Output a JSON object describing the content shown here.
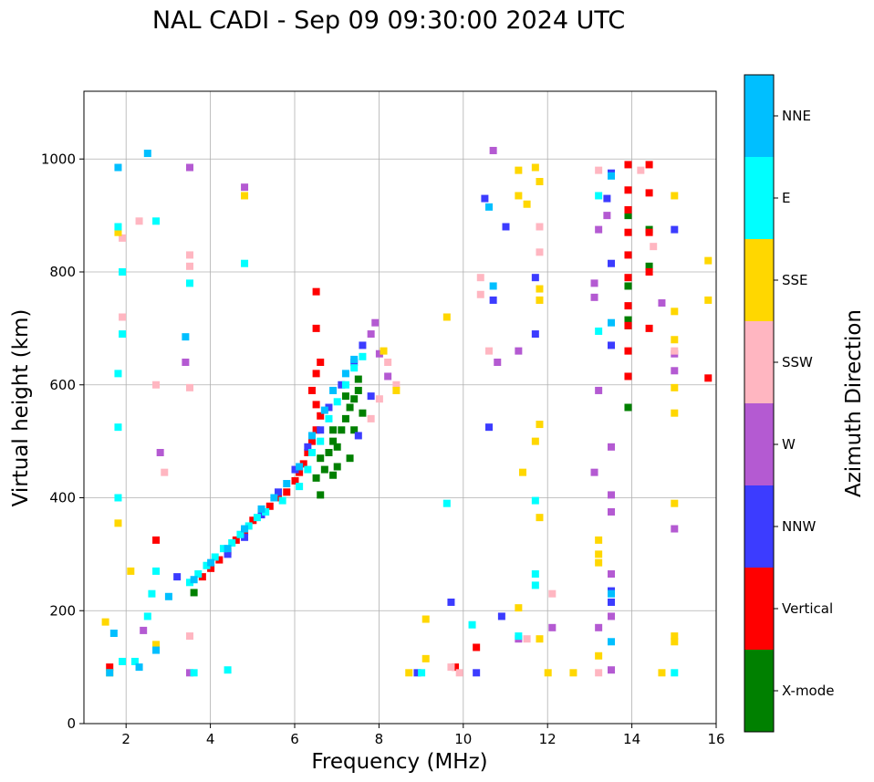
{
  "chart_data": {
    "type": "scatter",
    "title": "NAL CADI - Sep 09 09:30:00 2024 UTC",
    "xlabel": "Frequency (MHz)",
    "ylabel": "Virtual height (km)",
    "xlim": [
      1,
      16
    ],
    "ylim": [
      0,
      1120
    ],
    "xticks": [
      2,
      4,
      6,
      8,
      10,
      12,
      14,
      16
    ],
    "xtick_labels": [
      "2",
      "4",
      "6",
      "8",
      "10",
      "12",
      "14",
      "16"
    ],
    "yticks": [
      0,
      200,
      400,
      600,
      800,
      1000
    ],
    "ytick_labels": [
      "0",
      "200",
      "400",
      "600",
      "800",
      "1000"
    ],
    "grid": true,
    "colorbar": {
      "label": "Azimuth Direction",
      "categories": [
        {
          "name": "X-mode",
          "color": "#008000"
        },
        {
          "name": "Vertical",
          "color": "#ff0000"
        },
        {
          "name": "NNW",
          "color": "#3c3cff"
        },
        {
          "name": "W",
          "color": "#b45ad2"
        },
        {
          "name": "SSW",
          "color": "#ffb6c1"
        },
        {
          "name": "SSE",
          "color": "#ffd700"
        },
        {
          "name": "E",
          "color": "#00ffff"
        },
        {
          "name": "NNE",
          "color": "#00bfff"
        }
      ]
    },
    "series": [
      {
        "name": "X-mode",
        "points": [
          [
            6.5,
            435
          ],
          [
            6.6,
            470
          ],
          [
            6.8,
            480
          ],
          [
            6.9,
            500
          ],
          [
            7.0,
            490
          ],
          [
            7.1,
            520
          ],
          [
            7.2,
            540
          ],
          [
            7.3,
            560
          ],
          [
            7.4,
            575
          ],
          [
            7.5,
            590
          ],
          [
            7.6,
            550
          ],
          [
            7.0,
            455
          ],
          [
            6.7,
            450
          ],
          [
            6.9,
            520
          ],
          [
            7.2,
            580
          ],
          [
            7.4,
            520
          ],
          [
            7.5,
            610
          ],
          [
            6.6,
            405
          ],
          [
            6.9,
            440
          ],
          [
            7.3,
            470
          ],
          [
            3.6,
            232
          ],
          [
            13.9,
            560
          ],
          [
            13.9,
            900
          ],
          [
            14.4,
            875
          ],
          [
            14.4,
            810
          ],
          [
            13.9,
            705
          ],
          [
            13.9,
            775
          ],
          [
            13.9,
            715
          ]
        ]
      },
      {
        "name": "Vertical",
        "points": [
          [
            3.8,
            260
          ],
          [
            4.0,
            275
          ],
          [
            4.2,
            290
          ],
          [
            4.4,
            305
          ],
          [
            4.6,
            325
          ],
          [
            4.8,
            340
          ],
          [
            5.0,
            360
          ],
          [
            5.2,
            375
          ],
          [
            5.4,
            385
          ],
          [
            5.6,
            400
          ],
          [
            5.8,
            410
          ],
          [
            6.0,
            430
          ],
          [
            6.1,
            445
          ],
          [
            6.2,
            460
          ],
          [
            6.3,
            480
          ],
          [
            6.4,
            500
          ],
          [
            6.5,
            520
          ],
          [
            6.6,
            545
          ],
          [
            6.5,
            565
          ],
          [
            6.4,
            590
          ],
          [
            6.5,
            620
          ],
          [
            6.6,
            640
          ],
          [
            6.5,
            700
          ],
          [
            6.5,
            765
          ],
          [
            13.9,
            615
          ],
          [
            13.9,
            660
          ],
          [
            13.9,
            705
          ],
          [
            13.9,
            740
          ],
          [
            13.9,
            790
          ],
          [
            13.9,
            830
          ],
          [
            13.9,
            870
          ],
          [
            13.9,
            910
          ],
          [
            13.9,
            945
          ],
          [
            13.9,
            990
          ],
          [
            14.4,
            700
          ],
          [
            14.4,
            800
          ],
          [
            14.4,
            870
          ],
          [
            14.4,
            940
          ],
          [
            14.4,
            990
          ],
          [
            15.8,
            612
          ],
          [
            10.3,
            135
          ],
          [
            9.8,
            100
          ],
          [
            2.7,
            325
          ],
          [
            1.6,
            100
          ]
        ]
      },
      {
        "name": "NNW",
        "points": [
          [
            4.4,
            300
          ],
          [
            4.8,
            330
          ],
          [
            5.2,
            370
          ],
          [
            5.6,
            410
          ],
          [
            6.0,
            450
          ],
          [
            6.3,
            490
          ],
          [
            6.6,
            520
          ],
          [
            6.8,
            560
          ],
          [
            7.1,
            600
          ],
          [
            7.4,
            640
          ],
          [
            7.6,
            670
          ],
          [
            7.8,
            580
          ],
          [
            7.5,
            510
          ],
          [
            10.6,
            525
          ],
          [
            10.7,
            750
          ],
          [
            13.4,
            930
          ],
          [
            13.5,
            975
          ],
          [
            13.5,
            815
          ],
          [
            13.5,
            670
          ],
          [
            13.5,
            215
          ],
          [
            13.5,
            235
          ],
          [
            15.0,
            875
          ],
          [
            11.7,
            690
          ],
          [
            11.7,
            790
          ],
          [
            11.0,
            880
          ],
          [
            10.5,
            930
          ],
          [
            8.9,
            90
          ],
          [
            10.9,
            190
          ],
          [
            10.3,
            90
          ],
          [
            9.7,
            215
          ],
          [
            3.2,
            260
          ]
        ]
      },
      {
        "name": "W",
        "points": [
          [
            7.8,
            690
          ],
          [
            7.9,
            710
          ],
          [
            8.2,
            615
          ],
          [
            8.0,
            655
          ],
          [
            13.2,
            590
          ],
          [
            13.2,
            170
          ],
          [
            13.5,
            95
          ],
          [
            13.5,
            265
          ],
          [
            13.5,
            375
          ],
          [
            13.5,
            405
          ],
          [
            13.5,
            490
          ],
          [
            13.5,
            190
          ],
          [
            15.0,
            625
          ],
          [
            15.0,
            655
          ],
          [
            15.0,
            345
          ],
          [
            14.7,
            745
          ],
          [
            13.1,
            755
          ],
          [
            13.1,
            780
          ],
          [
            13.2,
            875
          ],
          [
            13.4,
            900
          ],
          [
            12.1,
            170
          ],
          [
            10.7,
            1015
          ],
          [
            10.8,
            640
          ],
          [
            11.3,
            660
          ],
          [
            2.4,
            165
          ],
          [
            3.5,
            985
          ],
          [
            4.8,
            950
          ],
          [
            2.8,
            480
          ],
          [
            3.4,
            640
          ],
          [
            3.5,
            90
          ],
          [
            11.3,
            150
          ],
          [
            13.1,
            445
          ]
        ]
      },
      {
        "name": "SSW",
        "points": [
          [
            8.4,
            600
          ],
          [
            8.2,
            640
          ],
          [
            8.0,
            575
          ],
          [
            7.8,
            540
          ],
          [
            11.8,
            835
          ],
          [
            11.8,
            880
          ],
          [
            12.1,
            230
          ],
          [
            11.8,
            750
          ],
          [
            13.2,
            980
          ],
          [
            14.2,
            980
          ],
          [
            14.5,
            845
          ],
          [
            15.0,
            660
          ],
          [
            10.6,
            660
          ],
          [
            10.4,
            790
          ],
          [
            10.4,
            760
          ],
          [
            3.5,
            830
          ],
          [
            3.5,
            810
          ],
          [
            3.5,
            595
          ],
          [
            3.5,
            155
          ],
          [
            2.9,
            445
          ],
          [
            2.7,
            600
          ],
          [
            1.9,
            860
          ],
          [
            1.9,
            720
          ],
          [
            2.3,
            890
          ],
          [
            13.2,
            90
          ],
          [
            9.9,
            90
          ],
          [
            9.7,
            100
          ],
          [
            11.5,
            150
          ]
        ]
      },
      {
        "name": "SSE",
        "points": [
          [
            8.1,
            660
          ],
          [
            8.4,
            590
          ],
          [
            11.8,
            770
          ],
          [
            11.8,
            750
          ],
          [
            11.8,
            530
          ],
          [
            11.8,
            365
          ],
          [
            11.7,
            500
          ],
          [
            11.4,
            445
          ],
          [
            11.3,
            205
          ],
          [
            11.3,
            980
          ],
          [
            11.7,
            985
          ],
          [
            11.8,
            960
          ],
          [
            11.3,
            935
          ],
          [
            11.5,
            920
          ],
          [
            9.6,
            720
          ],
          [
            9.1,
            185
          ],
          [
            9.1,
            115
          ],
          [
            8.7,
            90
          ],
          [
            12.0,
            90
          ],
          [
            12.6,
            90
          ],
          [
            13.2,
            120
          ],
          [
            13.2,
            285
          ],
          [
            13.2,
            300
          ],
          [
            13.2,
            325
          ],
          [
            14.7,
            90
          ],
          [
            15.0,
            155
          ],
          [
            15.0,
            145
          ],
          [
            15.0,
            390
          ],
          [
            15.0,
            550
          ],
          [
            15.0,
            595
          ],
          [
            15.0,
            680
          ],
          [
            15.0,
            730
          ],
          [
            15.0,
            935
          ],
          [
            15.8,
            820
          ],
          [
            15.8,
            750
          ],
          [
            11.8,
            150
          ],
          [
            2.1,
            270
          ],
          [
            2.7,
            140
          ],
          [
            1.5,
            180
          ],
          [
            1.6,
            90
          ],
          [
            1.8,
            355
          ],
          [
            1.8,
            870
          ],
          [
            4.8,
            935
          ]
        ]
      },
      {
        "name": "E",
        "points": [
          [
            3.5,
            250
          ],
          [
            3.7,
            265
          ],
          [
            3.9,
            280
          ],
          [
            4.1,
            295
          ],
          [
            4.3,
            310
          ],
          [
            4.5,
            320
          ],
          [
            4.7,
            335
          ],
          [
            4.9,
            350
          ],
          [
            5.1,
            365
          ],
          [
            5.3,
            375
          ],
          [
            5.7,
            395
          ],
          [
            6.1,
            420
          ],
          [
            6.3,
            450
          ],
          [
            6.4,
            480
          ],
          [
            6.6,
            500
          ],
          [
            6.8,
            540
          ],
          [
            7.0,
            570
          ],
          [
            7.2,
            600
          ],
          [
            7.4,
            630
          ],
          [
            7.6,
            650
          ],
          [
            13.2,
            935
          ],
          [
            13.2,
            695
          ],
          [
            11.7,
            245
          ],
          [
            11.7,
            265
          ],
          [
            11.7,
            395
          ],
          [
            11.3,
            155
          ],
          [
            9.6,
            390
          ],
          [
            10.2,
            175
          ],
          [
            1.9,
            800
          ],
          [
            1.9,
            690
          ],
          [
            1.8,
            880
          ],
          [
            1.8,
            620
          ],
          [
            1.8,
            525
          ],
          [
            1.8,
            400
          ],
          [
            1.9,
            110
          ],
          [
            2.2,
            110
          ],
          [
            4.8,
            815
          ],
          [
            3.5,
            780
          ],
          [
            3.6,
            90
          ],
          [
            4.4,
            95
          ],
          [
            2.7,
            890
          ],
          [
            2.5,
            190
          ],
          [
            2.6,
            230
          ],
          [
            2.7,
            270
          ],
          [
            15.0,
            90
          ],
          [
            9.0,
            90
          ]
        ]
      },
      {
        "name": "NNE",
        "points": [
          [
            3.6,
            255
          ],
          [
            4.0,
            285
          ],
          [
            4.4,
            310
          ],
          [
            4.8,
            345
          ],
          [
            5.2,
            380
          ],
          [
            5.5,
            400
          ],
          [
            5.8,
            425
          ],
          [
            6.1,
            455
          ],
          [
            6.4,
            510
          ],
          [
            6.7,
            555
          ],
          [
            6.9,
            590
          ],
          [
            7.2,
            620
          ],
          [
            7.4,
            645
          ],
          [
            13.5,
            145
          ],
          [
            13.5,
            230
          ],
          [
            13.5,
            710
          ],
          [
            13.5,
            970
          ],
          [
            10.7,
            775
          ],
          [
            10.6,
            915
          ],
          [
            2.5,
            1010
          ],
          [
            1.8,
            985
          ],
          [
            1.6,
            90
          ],
          [
            1.7,
            160
          ],
          [
            3.4,
            685
          ],
          [
            3.0,
            225
          ],
          [
            2.7,
            130
          ],
          [
            2.3,
            100
          ]
        ]
      }
    ]
  }
}
